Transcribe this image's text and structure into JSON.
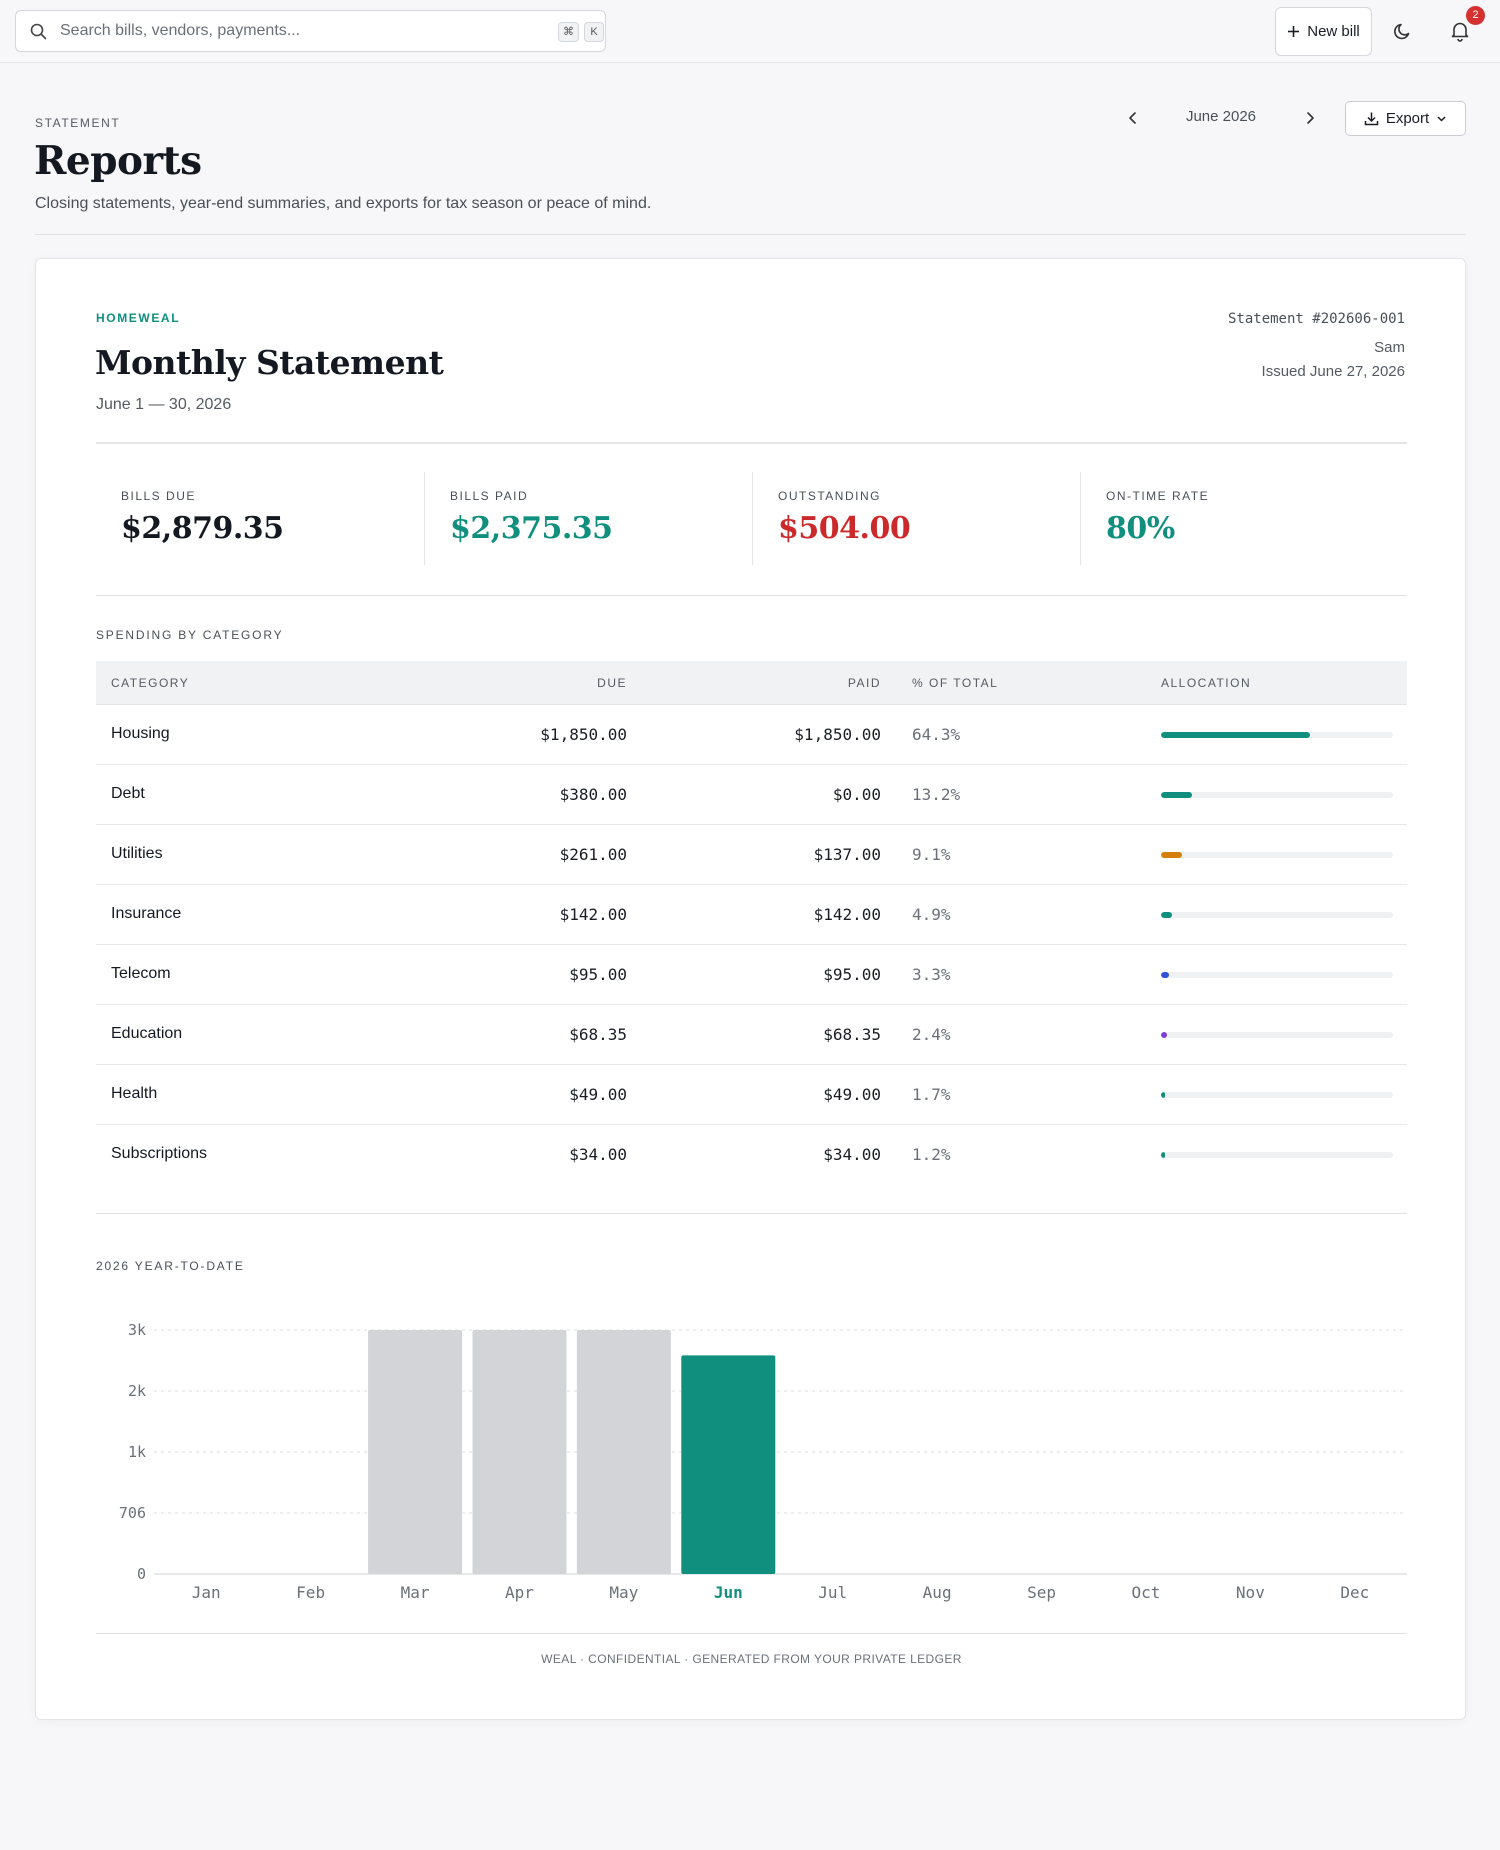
{
  "search": {
    "placeholder": "Search bills, vendors, payments...",
    "shortcut_keys": [
      "⌘",
      "K"
    ]
  },
  "topbar": {
    "new_bill_label": "New bill",
    "notification_count": "2"
  },
  "header": {
    "eyebrow": "STATEMENT",
    "title": "Reports",
    "subtitle": "Closing statements, year-end summaries, and exports for tax season or peace of mind.",
    "month": "June 2026",
    "export_label": "Export"
  },
  "statement": {
    "brand": "HOMEWEAL",
    "title": "Monthly Statement",
    "period": "June 1 — 30, 2026",
    "number": "Statement #202606-001",
    "user": "Sam",
    "issued": "Issued June 27, 2026",
    "stats": [
      {
        "label": "BILLS DUE",
        "value": "$2,879.35",
        "color": "#141820"
      },
      {
        "label": "BILLS PAID",
        "value": "$2,375.35",
        "color": "#108f7f"
      },
      {
        "label": "OUTSTANDING",
        "value": "$504.00",
        "color": "#cc2a2a"
      },
      {
        "label": "ON-TIME RATE",
        "value": "80%",
        "color": "#108f7f"
      }
    ],
    "spending_label": "SPENDING BY CATEGORY",
    "table": {
      "headers": [
        "CATEGORY",
        "DUE",
        "PAID",
        "% OF TOTAL",
        "ALLOCATION"
      ],
      "rows": [
        {
          "category": "Housing",
          "due": "$1,850.00",
          "paid": "$1,850.00",
          "pct": "64.3%",
          "share": 0.643,
          "color": "#108f7f"
        },
        {
          "category": "Debt",
          "due": "$380.00",
          "paid": "$0.00",
          "pct": "13.2%",
          "share": 0.132,
          "color": "#108f7f"
        },
        {
          "category": "Utilities",
          "due": "$261.00",
          "paid": "$137.00",
          "pct": "9.1%",
          "share": 0.091,
          "color": "#d67e0a"
        },
        {
          "category": "Insurance",
          "due": "$142.00",
          "paid": "$142.00",
          "pct": "4.9%",
          "share": 0.049,
          "color": "#108f7f"
        },
        {
          "category": "Telecom",
          "due": "$95.00",
          "paid": "$95.00",
          "pct": "3.3%",
          "share": 0.033,
          "color": "#2f54d8"
        },
        {
          "category": "Education",
          "due": "$68.35",
          "paid": "$68.35",
          "pct": "2.4%",
          "share": 0.024,
          "color": "#7a3fd6"
        },
        {
          "category": "Health",
          "due": "$49.00",
          "paid": "$49.00",
          "pct": "1.7%",
          "share": 0.017,
          "color": "#108f7f"
        },
        {
          "category": "Subscriptions",
          "due": "$34.00",
          "paid": "$34.00",
          "pct": "1.2%",
          "share": 0.012,
          "color": "#108f7f"
        }
      ]
    },
    "ytd_label": "2026 YEAR-TO-DATE",
    "footer": "WEAL · CONFIDENTIAL · GENERATED FROM YOUR PRIVATE LEDGER"
  },
  "chart_data": {
    "type": "bar",
    "categories": [
      "Jan",
      "Feb",
      "Mar",
      "Apr",
      "May",
      "Jun",
      "Jul",
      "Aug",
      "Sep",
      "Oct",
      "Nov",
      "Dec"
    ],
    "values": [
      0,
      0,
      3000,
      3000,
      3000,
      2530,
      0,
      0,
      0,
      0,
      0,
      0
    ],
    "highlight": "Jun",
    "yticks": [
      {
        "value": 0,
        "label": "0"
      },
      {
        "value": 706,
        "label": "706"
      },
      {
        "value": 1412,
        "label": "1k"
      },
      {
        "value": 2118,
        "label": "2k"
      },
      {
        "value": 2824,
        "label": "3k"
      }
    ],
    "ylim": [
      0,
      2824
    ],
    "grid": true,
    "colors": {
      "default": "#d2d4d8",
      "highlight": "#108f7f"
    }
  }
}
